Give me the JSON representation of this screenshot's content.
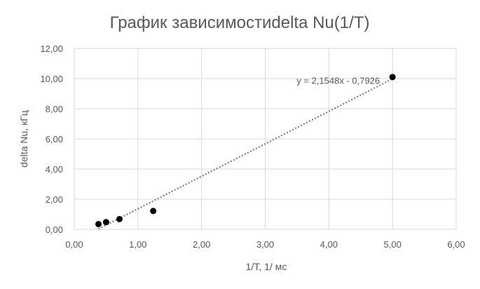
{
  "chart_data": {
    "type": "scatter",
    "title": "График зависимостиdelta Nu(1/T)",
    "xlabel": "1/T, 1/ мс",
    "ylabel": "delta Nu,  кГц",
    "xlim": [
      0,
      6
    ],
    "ylim": [
      0,
      12
    ],
    "x_ticks": [
      "0,00",
      "1,00",
      "2,00",
      "3,00",
      "4,00",
      "5,00",
      "6,00"
    ],
    "y_ticks": [
      "0,00",
      "2,00",
      "4,00",
      "6,00",
      "8,00",
      "10,00",
      "12,00"
    ],
    "grid": true,
    "legend": "none",
    "points": [
      {
        "x": 0.38,
        "y": 0.35
      },
      {
        "x": 0.5,
        "y": 0.48
      },
      {
        "x": 0.71,
        "y": 0.68
      },
      {
        "x": 1.24,
        "y": 1.22
      },
      {
        "x": 5.0,
        "y": 10.1
      }
    ],
    "trendline": {
      "type": "linear",
      "style": "dotted",
      "slope": 2.1548,
      "intercept": -0.7926,
      "x_range": [
        0.38,
        5.0
      ],
      "equation": "y = 2,1548x - 0,7926"
    },
    "colors": {
      "points": "#000000",
      "trendline": "#7f7f7f",
      "grid": "#d9d9d9",
      "text": "#595959"
    }
  }
}
